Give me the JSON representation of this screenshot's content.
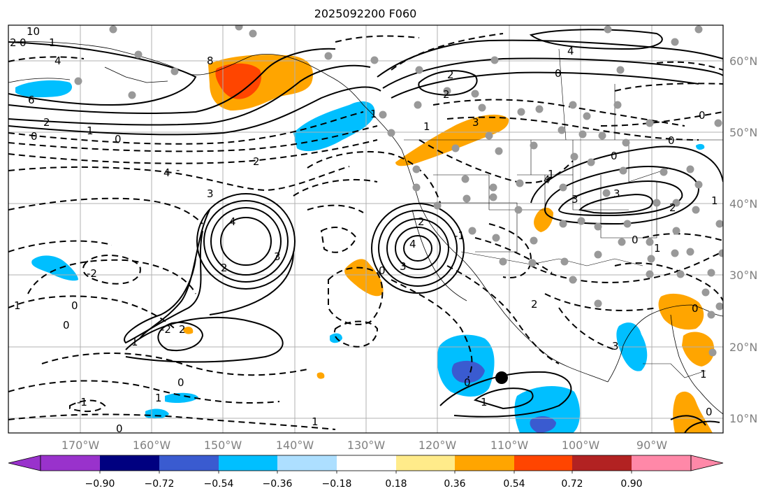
{
  "title": "2025092200 F060",
  "map": {
    "lon_ticks": [
      "170°W",
      "160°W",
      "150°W",
      "140°W",
      "130°W",
      "120°W",
      "110°W",
      "100°W",
      "90°W"
    ],
    "lat_ticks": [
      "60°N",
      "50°N",
      "40°N",
      "30°N",
      "20°N",
      "10°N"
    ],
    "contour_labels": [
      "10",
      "6",
      "4",
      "0",
      "1",
      "2",
      "8",
      "-",
      "4",
      "3",
      "2",
      "0",
      "2",
      "1",
      "0",
      "4",
      "3",
      "2",
      "3",
      "2",
      "0",
      "1",
      "2",
      "1",
      "0",
      "4",
      "3",
      "2",
      "1",
      "0",
      "0",
      "1",
      "-2",
      "1",
      "0",
      "2",
      "-2",
      "0",
      "1",
      "0",
      "-1",
      "1",
      "0",
      "1",
      "0",
      "4",
      "3",
      "3",
      "4",
      "0",
      "2",
      "1",
      "0",
      "1",
      "2",
      "-1",
      "3",
      "0",
      "1",
      "0"
    ]
  },
  "colorbar": {
    "tick_labels": [
      "−0.90",
      "−0.72",
      "−0.54",
      "−0.36",
      "−0.18",
      "0.18",
      "0.36",
      "0.54",
      "0.72",
      "0.90"
    ],
    "colors": {
      "under": "#9932CC",
      "bins": [
        "#000080",
        "#3A5BD0",
        "#00BFFF",
        "#ADDFFF",
        "#FFFFFF",
        "#FFEB8A",
        "#FFA500",
        "#FF4500",
        "#B22222",
        "#FF88A8"
      ],
      "over": "#FF88A8"
    }
  }
}
